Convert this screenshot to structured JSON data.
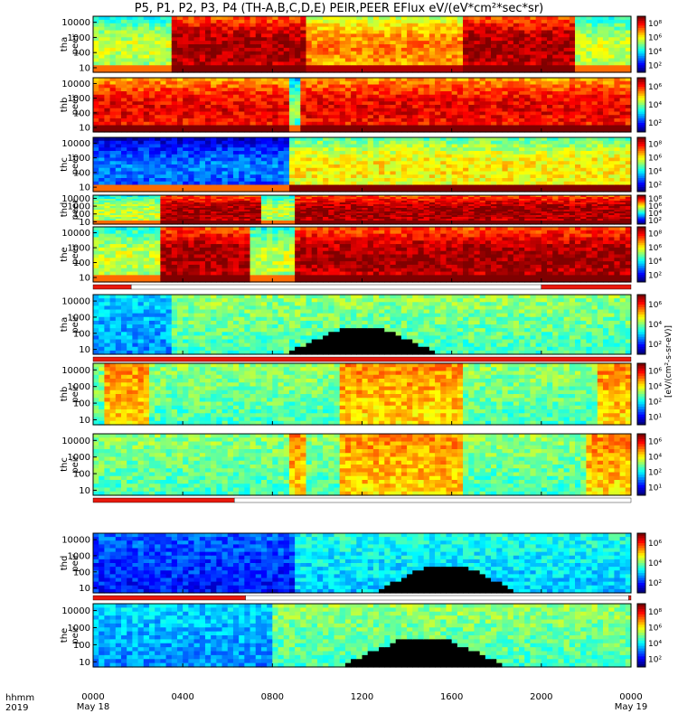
{
  "title": "P5, P1, P2, P3, P4 (TH-A,B,C,D,E) PEIR,PEER EFlux eV/(eV*cm²*sec*sr)",
  "footer": {
    "left_top": "hhmm",
    "left_bottom": "2019"
  },
  "colors": {
    "frame": "#000000",
    "bar_red": "#e8180c",
    "bar_white": "#ffffff",
    "black_fill": "#000000"
  },
  "colorbar_label": "[eV/(cm²-s-sr-eV)]",
  "chart_data": {
    "type": "heatmap",
    "x_axis": {
      "label": "hhmm",
      "ticks": [
        "0000",
        "0400",
        "0800",
        "1200",
        "1600",
        "2000",
        "0000"
      ],
      "tick_hours": [
        0,
        4,
        8,
        12,
        16,
        20,
        24
      ],
      "dates": [
        {
          "hour": 0,
          "text": "May 18"
        },
        {
          "hour": 24,
          "text": "May 19"
        }
      ]
    },
    "y_axis": {
      "scale": "log",
      "ticks": [
        "10",
        "100",
        "1000",
        "10000"
      ],
      "range": [
        5,
        25000
      ],
      "units": "eV"
    },
    "panels": [
      {
        "id": "tha_peer",
        "label_probe": "tha",
        "label_species": "peer",
        "species": "electron",
        "cb_ticks": [
          "10⁸",
          "10⁶",
          "10⁴",
          "10²"
        ],
        "base": "high",
        "quiet_spans": [
          [
            0,
            3.5
          ],
          [
            21.5,
            24
          ]
        ],
        "hot_spans": [
          [
            3.5,
            9.5
          ],
          [
            16.5,
            21.5
          ]
        ],
        "black": false
      },
      {
        "id": "thb_peer",
        "label_probe": "thb",
        "label_species": "peer",
        "species": "electron",
        "cb_ticks": [
          "10⁶",
          "10⁴",
          "10²"
        ],
        "base": "mid",
        "quiet_spans": [
          [
            8.8,
            9.2
          ]
        ],
        "hot_spans": [
          [
            0,
            8.8
          ],
          [
            9.2,
            24
          ]
        ],
        "black": false
      },
      {
        "id": "thc_peer",
        "label_probe": "thc",
        "label_species": "peer",
        "species": "electron",
        "cb_ticks": [
          "10⁸",
          "10⁶",
          "10⁴",
          "10²"
        ],
        "base": "low",
        "quiet_spans": [
          [
            0,
            8.8
          ]
        ],
        "hot_spans": [
          [
            8.8,
            24
          ]
        ],
        "black": false
      },
      {
        "id": "thd_peer",
        "label_probe": "thd",
        "label_species": "peer",
        "species": "electron",
        "cb_ticks": [
          "10⁸",
          "10⁶",
          "10⁴",
          "10²"
        ],
        "base": "high",
        "quiet_spans": [
          [
            0,
            3
          ],
          [
            7.5,
            9
          ]
        ],
        "hot_spans": [
          [
            3,
            7.5
          ],
          [
            9,
            24
          ]
        ],
        "black": false
      },
      {
        "id": "the_peer",
        "label_probe": "the",
        "label_species": "peer",
        "species": "electron",
        "cb_ticks": [
          "10⁸",
          "10⁶",
          "10⁴",
          "10²"
        ],
        "base": "high",
        "quiet_spans": [
          [
            0,
            3
          ],
          [
            7,
            9
          ]
        ],
        "hot_spans": [
          [
            3,
            7
          ],
          [
            9,
            24
          ]
        ],
        "black": false
      },
      {
        "id": "tha_peir",
        "label_probe": "tha",
        "label_species": "peir",
        "species": "ion",
        "cb_ticks": [
          "10⁶",
          "10⁴",
          "10²"
        ],
        "base": "green",
        "quiet_spans": [
          [
            0,
            3.5
          ]
        ],
        "hot_spans": [],
        "black": true,
        "black_span": [
          8.5,
          15.5
        ]
      },
      {
        "id": "thb_peir",
        "label_probe": "thb",
        "label_species": "peir",
        "species": "ion",
        "cb_ticks": [
          "10⁶",
          "10⁴",
          "10²",
          "10¹"
        ],
        "base": "green",
        "quiet_spans": [],
        "hot_spans": [
          [
            0.5,
            2.5
          ],
          [
            11,
            16.5
          ],
          [
            22.5,
            24
          ]
        ],
        "black": false
      },
      {
        "id": "thc_peir",
        "label_probe": "thc",
        "label_species": "peir",
        "species": "ion",
        "cb_ticks": [
          "10⁶",
          "10⁴",
          "10²",
          "10¹"
        ],
        "base": "green",
        "quiet_spans": [],
        "hot_spans": [
          [
            8.8,
            9.5
          ],
          [
            11,
            16.5
          ],
          [
            22,
            24
          ]
        ],
        "black": false
      },
      {
        "id": "thd_peir",
        "label_probe": "thd",
        "label_species": "peir",
        "species": "ion",
        "cb_ticks": [
          "10⁶",
          "10⁴",
          "10²"
        ],
        "base": "cyan",
        "quiet_spans": [
          [
            0,
            9
          ]
        ],
        "hot_spans": [],
        "black": true,
        "black_span": [
          12.5,
          19
        ]
      },
      {
        "id": "the_peir",
        "label_probe": "the",
        "label_species": "peir",
        "species": "ion",
        "cb_ticks": [
          "10⁸",
          "10⁶",
          "10⁴",
          "10²"
        ],
        "base": "green",
        "quiet_spans": [
          [
            0,
            8
          ]
        ],
        "hot_spans": [],
        "black": true,
        "black_span": [
          11,
          18.5
        ]
      }
    ],
    "mode_bars": [
      {
        "after_panel": 4,
        "segments": [
          {
            "from": 0,
            "to": 1.7,
            "color": "red"
          },
          {
            "from": 1.7,
            "to": 20,
            "color": "white"
          },
          {
            "from": 20,
            "to": 24,
            "color": "red"
          }
        ]
      },
      {
        "after_panel": 5,
        "segments": [
          {
            "from": 0,
            "to": 24,
            "color": "red"
          }
        ]
      },
      {
        "after_panel": 7,
        "segments": [
          {
            "from": 0,
            "to": 6.3,
            "color": "red"
          },
          {
            "from": 6.3,
            "to": 24,
            "color": "white"
          }
        ]
      },
      {
        "after_panel": 8,
        "segments": [
          {
            "from": 0,
            "to": 6.8,
            "color": "red"
          },
          {
            "from": 6.8,
            "to": 23.9,
            "color": "white"
          },
          {
            "from": 23.9,
            "to": 24,
            "color": "red"
          }
        ]
      }
    ]
  }
}
